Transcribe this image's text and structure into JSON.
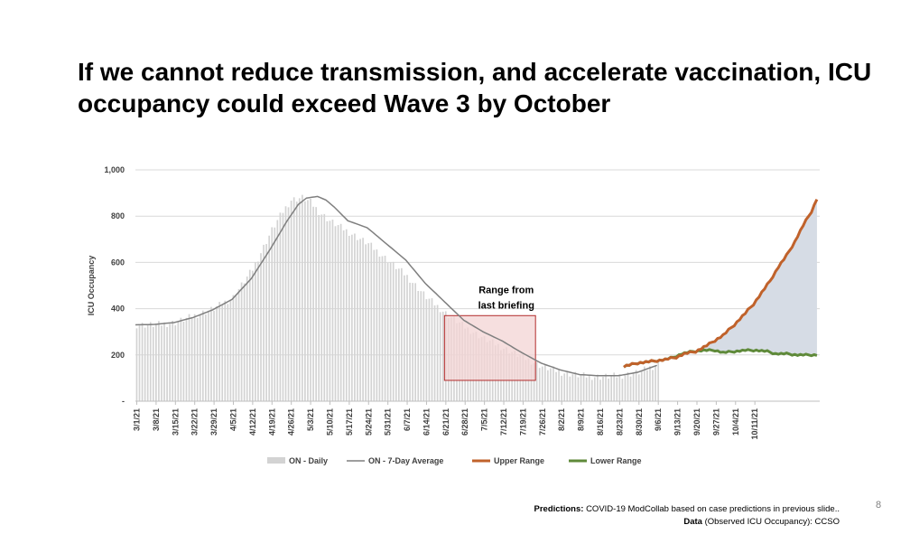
{
  "slide": {
    "title": "If we cannot reduce transmission, and accelerate vaccination, ICU occupancy could exceed Wave 3 by October",
    "page_number": "8",
    "footer": {
      "predictions_label": "Predictions:",
      "predictions_text": "COVID-19 ModCollab based on case predictions in previous slide..",
      "data_label": "Data",
      "data_text": "(Observed ICU Occupancy): CCSO"
    }
  },
  "colors": {
    "daily_bar": "#d3d3d3",
    "average_line": "#7f7f7f",
    "upper_range": "#c0622b",
    "lower_range": "#5f8a3a",
    "projection_fill": "#d6dce5",
    "range_box_fill": "#f3d4d4",
    "range_box_stroke": "#b22b2b",
    "gridline": "#d9d9d9"
  },
  "chart_data": {
    "type": "bar+line",
    "ylabel": "ICU Occupancy",
    "ylim": [
      0,
      1000
    ],
    "yticks": [
      {
        "value": 0,
        "label": "-"
      },
      {
        "value": 200,
        "label": "200"
      },
      {
        "value": 400,
        "label": "400"
      },
      {
        "value": 600,
        "label": "600"
      },
      {
        "value": 800,
        "label": "800"
      },
      {
        "value": 1000,
        "label": "1,000"
      }
    ],
    "x_start_date": "3/1/21",
    "x_total_days": 226,
    "xtick_labels": [
      "3/1/21",
      "3/8/21",
      "3/15/21",
      "3/22/21",
      "3/29/21",
      "4/5/21",
      "4/12/21",
      "4/19/21",
      "4/26/21",
      "5/3/21",
      "5/10/21",
      "5/17/21",
      "5/24/21",
      "5/31/21",
      "6/7/21",
      "6/14/21",
      "6/21/21",
      "6/28/21",
      "7/5/21",
      "7/12/21",
      "7/19/21",
      "7/26/21",
      "8/2/21",
      "8/9/21",
      "8/16/21",
      "8/23/21",
      "8/30/21",
      "9/6/21",
      "9/13/21",
      "9/20/21",
      "9/27/21",
      "10/4/21",
      "10/11/21"
    ],
    "daily_series": {
      "name": "ON - Daily",
      "start_day": 0,
      "keypoints": [
        [
          0,
          330
        ],
        [
          7,
          330
        ],
        [
          14,
          340
        ],
        [
          21,
          370
        ],
        [
          28,
          400
        ],
        [
          35,
          450
        ],
        [
          42,
          570
        ],
        [
          49,
          740
        ],
        [
          53,
          820
        ],
        [
          56,
          870
        ],
        [
          60,
          880
        ],
        [
          63,
          860
        ],
        [
          66,
          820
        ],
        [
          70,
          780
        ],
        [
          77,
          730
        ],
        [
          84,
          680
        ],
        [
          91,
          610
        ],
        [
          98,
          540
        ],
        [
          105,
          450
        ],
        [
          112,
          380
        ],
        [
          119,
          320
        ],
        [
          126,
          270
        ],
        [
          133,
          230
        ],
        [
          140,
          190
        ],
        [
          147,
          150
        ],
        [
          154,
          125
        ],
        [
          161,
          110
        ],
        [
          168,
          105
        ],
        [
          175,
          110
        ],
        [
          182,
          125
        ],
        [
          189,
          160
        ]
      ]
    },
    "average_series": {
      "name": "ON - 7-Day Average",
      "start_day": 0,
      "keypoints": [
        [
          0,
          330
        ],
        [
          7,
          332
        ],
        [
          14,
          340
        ],
        [
          21,
          362
        ],
        [
          28,
          395
        ],
        [
          35,
          440
        ],
        [
          42,
          530
        ],
        [
          49,
          660
        ],
        [
          55,
          780
        ],
        [
          59,
          850
        ],
        [
          62,
          878
        ],
        [
          66,
          885
        ],
        [
          69,
          870
        ],
        [
          72,
          840
        ],
        [
          77,
          780
        ],
        [
          84,
          750
        ],
        [
          91,
          680
        ],
        [
          98,
          610
        ],
        [
          105,
          510
        ],
        [
          112,
          430
        ],
        [
          119,
          350
        ],
        [
          126,
          300
        ],
        [
          133,
          260
        ],
        [
          140,
          210
        ],
        [
          147,
          165
        ],
        [
          154,
          135
        ],
        [
          161,
          115
        ],
        [
          168,
          110
        ],
        [
          175,
          110
        ],
        [
          182,
          125
        ],
        [
          189,
          155
        ]
      ]
    },
    "upper_range": {
      "name": "Upper Range",
      "keypoints": [
        [
          177,
          150
        ],
        [
          182,
          165
        ],
        [
          187,
          172
        ],
        [
          192,
          180
        ],
        [
          196,
          190
        ],
        [
          199,
          205
        ],
        [
          203,
          215
        ],
        [
          207,
          240
        ],
        [
          213,
          285
        ],
        [
          217,
          330
        ],
        [
          221,
          380
        ],
        [
          224,
          420
        ],
        [
          227,
          470
        ],
        [
          230,
          520
        ],
        [
          233,
          580
        ],
        [
          236,
          630
        ],
        [
          239,
          690
        ],
        [
          242,
          760
        ],
        [
          245,
          820
        ],
        [
          247,
          875
        ]
      ]
    },
    "lower_range": {
      "name": "Lower Range",
      "keypoints": [
        [
          177,
          150
        ],
        [
          182,
          165
        ],
        [
          187,
          172
        ],
        [
          192,
          180
        ],
        [
          195,
          190
        ],
        [
          198,
          205
        ],
        [
          202,
          215
        ],
        [
          206,
          220
        ],
        [
          210,
          220
        ],
        [
          213,
          210
        ],
        [
          217,
          215
        ],
        [
          221,
          220
        ],
        [
          225,
          220
        ],
        [
          229,
          215
        ],
        [
          232,
          205
        ],
        [
          236,
          205
        ],
        [
          240,
          200
        ],
        [
          243,
          200
        ],
        [
          247,
          200
        ]
      ]
    },
    "annotation": {
      "text_line1": "Range from",
      "text_line2": "last briefing",
      "box_start_day": 112,
      "box_end_day": 145,
      "box_y_low": 90,
      "box_y_high": 370
    },
    "legend": {
      "position": "bottom",
      "items": [
        {
          "name": "ON - Daily",
          "kind": "bar"
        },
        {
          "name": "ON - 7-Day Average",
          "kind": "line"
        },
        {
          "name": "Upper Range",
          "kind": "upper"
        },
        {
          "name": "Lower Range",
          "kind": "lower"
        }
      ]
    }
  }
}
